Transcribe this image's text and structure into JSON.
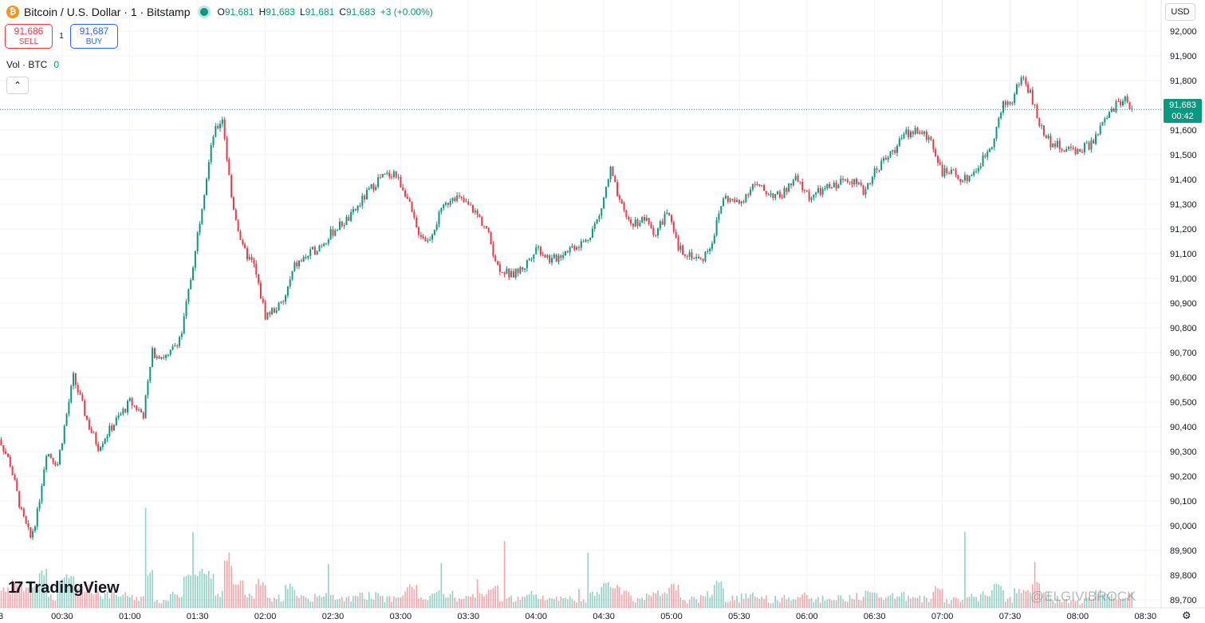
{
  "header": {
    "symbol_icon": "bitcoin-icon",
    "title": "Bitcoin / U.S. Dollar · 1 · Bitstamp",
    "ohlc": {
      "o_label": "O",
      "o": "91,681",
      "h_label": "H",
      "h": "91,683",
      "l_label": "L",
      "l": "91,681",
      "c_label": "C",
      "c": "91,683",
      "change": "+3 (+0.00%)"
    }
  },
  "trade": {
    "sell_price": "91,686",
    "sell_label": "SELL",
    "spread": "1",
    "buy_price": "91,687",
    "buy_label": "BUY"
  },
  "volume_legend": {
    "label": "Vol · BTC",
    "value": "0"
  },
  "currency": "USD",
  "last_price": {
    "value": "91,683",
    "countdown": "00:42"
  },
  "branding": {
    "logo_text": "TradingView"
  },
  "watermark": "@ELGIVIBROCK",
  "colors": {
    "up": "#089981",
    "down": "#f23645",
    "grid": "#f0f3fa",
    "accent": "#2962ff"
  },
  "chart_data": {
    "type": "candlestick",
    "y_axis_ticks": [
      89700,
      89800,
      89900,
      90000,
      90100,
      90200,
      90300,
      90400,
      90500,
      90600,
      90700,
      90800,
      90900,
      91000,
      91100,
      91200,
      91300,
      91400,
      91500,
      91600,
      91700,
      91800,
      91900,
      92000
    ],
    "y_axis_labels": [
      "89,700",
      "89,800",
      "89,900",
      "90,000",
      "90,100",
      "90,200",
      "90,300",
      "90,400",
      "90,500",
      "90,600",
      "90,700",
      "90,800",
      "90,900",
      "91,000",
      "91,100",
      "91,200",
      "91,300",
      "91,400",
      "91,500",
      "91,600",
      "91,700",
      "91,800",
      "91,900",
      "92,000"
    ],
    "x_axis_labels": [
      "00:30",
      "01:00",
      "01:30",
      "02:00",
      "02:30",
      "03:00",
      "03:30",
      "04:00",
      "04:30",
      "05:00",
      "05:30",
      "06:00",
      "06:30",
      "07:00",
      "07:30",
      "08:00",
      "08:30"
    ],
    "x_axis_first_label_partial": "3",
    "time_start": "00:00",
    "time_end": "08:24",
    "close_path": [
      [
        "00:00",
        90400
      ],
      [
        "00:07",
        90250
      ],
      [
        "00:12",
        90050
      ],
      [
        "00:16",
        89950
      ],
      [
        "00:19",
        90050
      ],
      [
        "00:23",
        90300
      ],
      [
        "00:28",
        90250
      ],
      [
        "00:32",
        90450
      ],
      [
        "00:35",
        90600
      ],
      [
        "00:42",
        90400
      ],
      [
        "00:46",
        90320
      ],
      [
        "00:52",
        90400
      ],
      [
        "01:00",
        90500
      ],
      [
        "01:06",
        90450
      ],
      [
        "01:10",
        90700
      ],
      [
        "01:17",
        90680
      ],
      [
        "01:23",
        90780
      ],
      [
        "01:27",
        91000
      ],
      [
        "01:32",
        91300
      ],
      [
        "01:37",
        91580
      ],
      [
        "01:41",
        91650
      ],
      [
        "01:45",
        91330
      ],
      [
        "01:50",
        91120
      ],
      [
        "01:55",
        91050
      ],
      [
        "02:00",
        90850
      ],
      [
        "02:08",
        90900
      ],
      [
        "02:13",
        91050
      ],
      [
        "02:20",
        91100
      ],
      [
        "02:26",
        91150
      ],
      [
        "02:31",
        91200
      ],
      [
        "02:38",
        91250
      ],
      [
        "02:44",
        91330
      ],
      [
        "02:50",
        91400
      ],
      [
        "02:57",
        91430
      ],
      [
        "03:02",
        91350
      ],
      [
        "03:07",
        91200
      ],
      [
        "03:12",
        91150
      ],
      [
        "03:17",
        91250
      ],
      [
        "03:23",
        91340
      ],
      [
        "03:29",
        91300
      ],
      [
        "03:33",
        91270
      ],
      [
        "03:38",
        91200
      ],
      [
        "03:43",
        91050
      ],
      [
        "03:49",
        91010
      ],
      [
        "03:55",
        91050
      ],
      [
        "04:00",
        91130
      ],
      [
        "04:07",
        91070
      ],
      [
        "04:14",
        91120
      ],
      [
        "04:22",
        91150
      ],
      [
        "04:28",
        91250
      ],
      [
        "04:33",
        91440
      ],
      [
        "04:37",
        91300
      ],
      [
        "04:42",
        91220
      ],
      [
        "04:48",
        91240
      ],
      [
        "04:53",
        91180
      ],
      [
        "04:58",
        91270
      ],
      [
        "05:03",
        91120
      ],
      [
        "05:08",
        91100
      ],
      [
        "05:13",
        91070
      ],
      [
        "05:18",
        91150
      ],
      [
        "05:23",
        91330
      ],
      [
        "05:30",
        91300
      ],
      [
        "05:36",
        91380
      ],
      [
        "05:42",
        91350
      ],
      [
        "05:48",
        91330
      ],
      [
        "05:55",
        91400
      ],
      [
        "06:01",
        91330
      ],
      [
        "06:06",
        91350
      ],
      [
        "06:13",
        91380
      ],
      [
        "06:19",
        91410
      ],
      [
        "06:25",
        91350
      ],
      [
        "06:31",
        91450
      ],
      [
        "06:37",
        91500
      ],
      [
        "06:43",
        91580
      ],
      [
        "06:48",
        91600
      ],
      [
        "06:55",
        91560
      ],
      [
        "07:00",
        91430
      ],
      [
        "07:05",
        91420
      ],
      [
        "07:10",
        91400
      ],
      [
        "07:16",
        91450
      ],
      [
        "07:22",
        91550
      ],
      [
        "07:27",
        91700
      ],
      [
        "07:31",
        91720
      ],
      [
        "07:35",
        91820
      ],
      [
        "07:39",
        91750
      ],
      [
        "07:43",
        91620
      ],
      [
        "07:48",
        91550
      ],
      [
        "07:55",
        91520
      ],
      [
        "08:01",
        91520
      ],
      [
        "08:07",
        91550
      ],
      [
        "08:12",
        91640
      ],
      [
        "08:17",
        91700
      ],
      [
        "08:21",
        91730
      ],
      [
        "08:24",
        91683
      ]
    ]
  }
}
